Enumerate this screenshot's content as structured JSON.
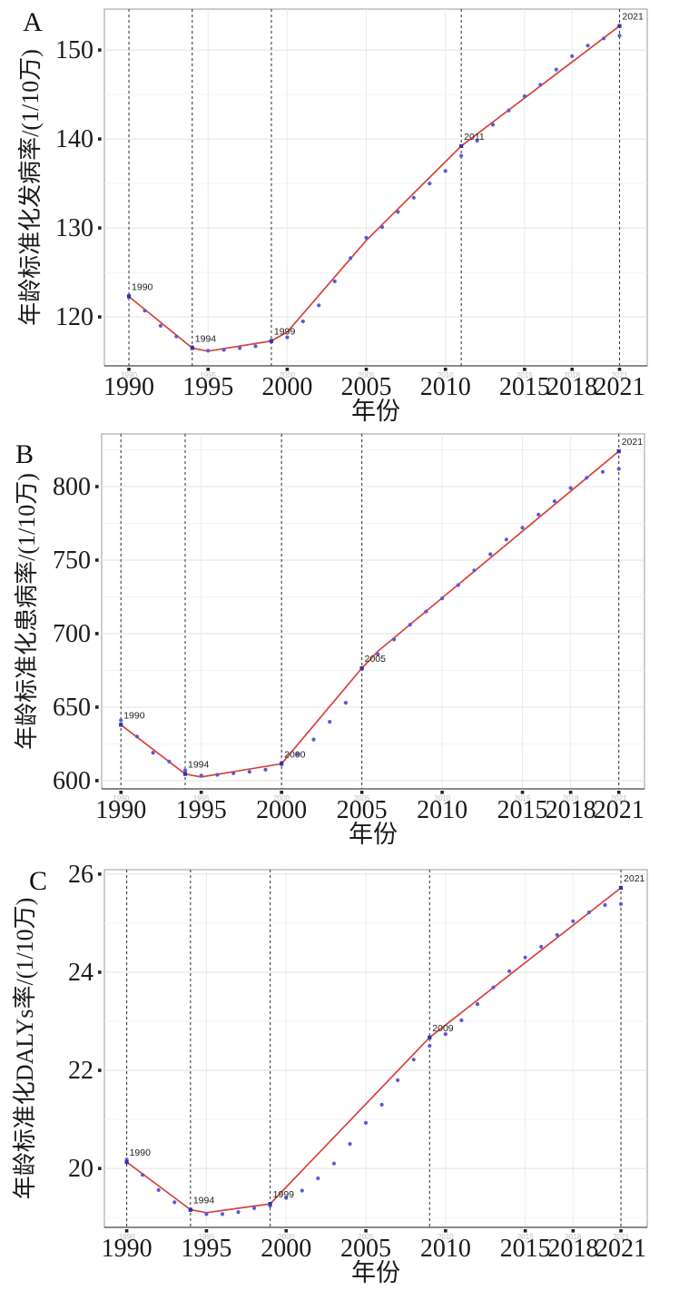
{
  "figure": {
    "x_axis_title": "年份",
    "panel_letters": [
      "A",
      "B",
      "C"
    ]
  },
  "colors": {
    "background": "#ffffff",
    "observed_point": "#5b5bd0",
    "fitted_line": "#d8423d",
    "joinpoint_marker": "#34349e",
    "dashed_line": "#3f3f3f",
    "grid_major": "#e2e2e2",
    "grid_minor": "#f2f2f2",
    "grid_vertical": "#ebebeb",
    "axis_line": "#444444",
    "panel_border": "#9a9a9a",
    "tick_label": "#1a1a1a",
    "mini_tick_label": "#c0c0c0",
    "joinpoint_label": "#222222"
  },
  "chart_data": [
    {
      "type": "scatter",
      "panel": "A",
      "xlabel": "年份",
      "ylabel": "年龄标准化发病率/(1/10万)",
      "x_ticks": [
        1990,
        1995,
        2000,
        2005,
        2010,
        2015,
        2018,
        2021
      ],
      "x_tick_labels": [
        "1990",
        "1995",
        "2000",
        "2005",
        "2010",
        "2015",
        "2018",
        "2021"
      ],
      "y_ticks": [
        120,
        130,
        140,
        150
      ],
      "y_minor_ticks": [
        115,
        125,
        135,
        145
      ],
      "xlim": [
        1988.45,
        2022.75
      ],
      "ylim": [
        114.5,
        154.6
      ],
      "years": [
        1990,
        1991,
        1992,
        1993,
        1994,
        1995,
        1996,
        1997,
        1998,
        1999,
        2000,
        2001,
        2002,
        2003,
        2004,
        2005,
        2006,
        2007,
        2008,
        2009,
        2010,
        2011,
        2012,
        2013,
        2014,
        2015,
        2016,
        2017,
        2018,
        2019,
        2020,
        2021
      ],
      "observed": [
        122.4,
        120.7,
        119.0,
        117.8,
        116.6,
        116.2,
        116.3,
        116.5,
        116.7,
        117.2,
        117.7,
        119.5,
        121.3,
        124.0,
        126.6,
        128.9,
        130.1,
        131.8,
        133.4,
        135.0,
        136.4,
        138.1,
        139.8,
        141.6,
        143.2,
        144.8,
        146.1,
        147.8,
        149.3,
        150.5,
        151.3,
        151.6
      ],
      "fitted_line": [
        [
          1990,
          122.3
        ],
        [
          1994,
          116.5
        ],
        [
          1995,
          116.15
        ],
        [
          1999,
          117.3
        ],
        [
          2000,
          118.3
        ],
        [
          2005,
          128.6
        ],
        [
          2011,
          139.2
        ],
        [
          2021,
          152.7
        ]
      ],
      "joinpoints": [
        {
          "year": 1990,
          "value": 122.3,
          "label": "1990"
        },
        {
          "year": 1994,
          "value": 116.5,
          "label": "1994"
        },
        {
          "year": 1999,
          "value": 117.3,
          "label": "1999"
        },
        {
          "year": 2011,
          "value": 139.2,
          "label": "2011"
        },
        {
          "year": 2021,
          "value": 152.7,
          "label": "2021"
        }
      ]
    },
    {
      "type": "scatter",
      "panel": "B",
      "xlabel": "年份",
      "ylabel": "年龄标准化患病率/(1/10万)",
      "x_ticks": [
        1990,
        1995,
        2000,
        2005,
        2010,
        2015,
        2018,
        2021
      ],
      "x_tick_labels": [
        "1990",
        "1995",
        "2000",
        "2005",
        "2010",
        "2015",
        "2018",
        "2021"
      ],
      "y_ticks": [
        600,
        650,
        700,
        750,
        800
      ],
      "y_minor_ticks": [
        625,
        675,
        725,
        775,
        825
      ],
      "xlim": [
        1988.8,
        2022.6
      ],
      "ylim": [
        594.4,
        835.8
      ],
      "years": [
        1990,
        1991,
        1992,
        1993,
        1994,
        1995,
        1996,
        1997,
        1998,
        1999,
        2000,
        2001,
        2002,
        2003,
        2004,
        2005,
        2006,
        2007,
        2008,
        2009,
        2010,
        2011,
        2012,
        2013,
        2014,
        2015,
        2016,
        2017,
        2018,
        2019,
        2020,
        2021
      ],
      "observed": [
        641,
        630,
        619,
        613,
        607,
        603.5,
        604,
        605,
        606,
        607.5,
        612,
        618,
        628,
        640,
        653,
        676,
        686,
        696,
        706,
        715,
        724,
        733,
        743,
        754,
        764,
        772,
        781,
        790,
        799,
        806,
        810,
        812
      ],
      "fitted_line": [
        [
          1990,
          638
        ],
        [
          1994,
          604.5
        ],
        [
          1995,
          602.5
        ],
        [
          2000,
          611.5
        ],
        [
          2005,
          676.5
        ],
        [
          2006,
          688
        ],
        [
          2021,
          824
        ]
      ],
      "joinpoints": [
        {
          "year": 1990,
          "value": 638,
          "label": "1990"
        },
        {
          "year": 1994,
          "value": 604.5,
          "label": "1994"
        },
        {
          "year": 2000,
          "value": 611.5,
          "label": "2000"
        },
        {
          "year": 2005,
          "value": 676.5,
          "label": "2005"
        },
        {
          "year": 2021,
          "value": 824,
          "label": "2021"
        }
      ]
    },
    {
      "type": "scatter",
      "panel": "C",
      "xlabel": "年份",
      "ylabel": "年龄标准化DALYs率/(1/10万)",
      "x_ticks": [
        1990,
        1995,
        2000,
        2005,
        2010,
        2015,
        2018,
        2021
      ],
      "x_tick_labels": [
        "1990",
        "1995",
        "2000",
        "2005",
        "2010",
        "2015",
        "2018",
        "2021"
      ],
      "y_ticks": [
        20,
        22,
        24,
        26
      ],
      "y_minor_ticks": [
        19,
        21,
        23,
        25
      ],
      "xlim": [
        1988.6,
        2022.65
      ],
      "ylim": [
        18.8,
        26.09
      ],
      "years": [
        1990,
        1991,
        1992,
        1993,
        1994,
        1995,
        1996,
        1997,
        1998,
        1999,
        2000,
        2001,
        2002,
        2003,
        2004,
        2005,
        2006,
        2007,
        2008,
        2009,
        2010,
        2011,
        2012,
        2013,
        2014,
        2015,
        2016,
        2017,
        2018,
        2019,
        2020,
        2021
      ],
      "observed": [
        20.18,
        19.87,
        19.56,
        19.31,
        19.15,
        19.07,
        19.07,
        19.11,
        19.19,
        19.24,
        19.4,
        19.55,
        19.8,
        20.1,
        20.5,
        20.93,
        21.3,
        21.8,
        22.22,
        22.5,
        22.74,
        23.02,
        23.35,
        23.69,
        24.02,
        24.3,
        24.52,
        24.76,
        25.04,
        25.22,
        25.37,
        25.39
      ],
      "fitted_line": [
        [
          1990,
          20.13
        ],
        [
          1994,
          19.16
        ],
        [
          1995,
          19.1
        ],
        [
          1999,
          19.28
        ],
        [
          2009,
          22.67
        ],
        [
          2021,
          25.72
        ]
      ],
      "joinpoints": [
        {
          "year": 1990,
          "value": 20.13,
          "label": "1990"
        },
        {
          "year": 1994,
          "value": 19.16,
          "label": "1994"
        },
        {
          "year": 1999,
          "value": 19.28,
          "label": "1999"
        },
        {
          "year": 2009,
          "value": 22.67,
          "label": "2009"
        },
        {
          "year": 2021,
          "value": 25.72,
          "label": "2021"
        }
      ]
    }
  ]
}
